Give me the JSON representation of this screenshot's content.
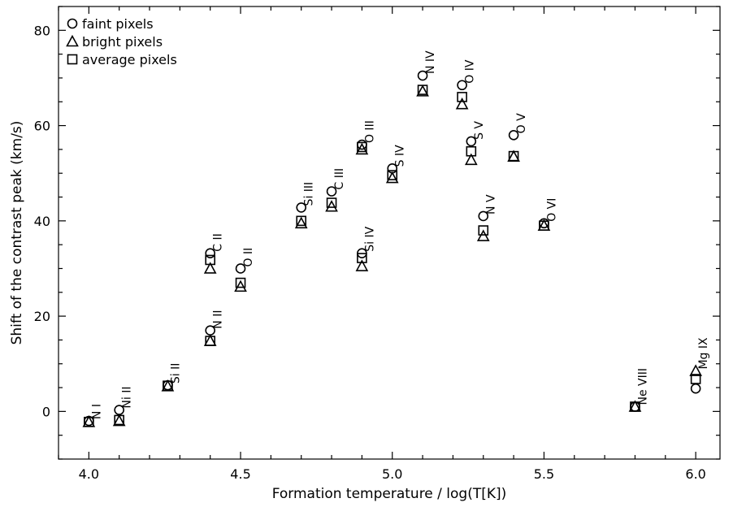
{
  "chart_data": {
    "type": "scatter",
    "xlabel": "Formation temperature / log(T[K])",
    "ylabel": "Shift of the contrast peak (km/s)",
    "xlim": [
      3.9,
      6.08
    ],
    "ylim": [
      -10,
      85
    ],
    "xticks": [
      "4.0",
      "4.5",
      "5.0",
      "5.5",
      "6.0"
    ],
    "xtick_values": [
      4.0,
      4.5,
      5.0,
      5.5,
      6.0
    ],
    "yticks": [
      "0",
      "20",
      "40",
      "60",
      "80"
    ],
    "ytick_values": [
      0,
      20,
      40,
      60,
      80
    ],
    "grid": false,
    "legend_position": "top-left",
    "series": [
      {
        "name": "faint pixels",
        "marker": "circle"
      },
      {
        "name": "bright pixels",
        "marker": "triangle"
      },
      {
        "name": "average pixels",
        "marker": "square"
      }
    ],
    "points": [
      {
        "label": "N I",
        "x": 4.0,
        "faint": -2.0,
        "bright": -2.2,
        "average": -2.2
      },
      {
        "label": "Ni II",
        "x": 4.1,
        "faint": 0.3,
        "bright": -2.0,
        "average": -1.8
      },
      {
        "label": "Si II",
        "x": 4.26,
        "faint": 5.5,
        "bright": 5.3,
        "average": 5.4
      },
      {
        "label": "C II",
        "x": 4.4,
        "faint": 33.2,
        "bright": 30.0,
        "average": 31.8
      },
      {
        "label": "N II",
        "x": 4.4,
        "faint": 17.0,
        "bright": 14.8,
        "average": 14.8
      },
      {
        "label": "O II",
        "x": 4.5,
        "faint": 30.0,
        "bright": 26.2,
        "average": 27.0
      },
      {
        "label": "Si III",
        "x": 4.7,
        "faint": 42.8,
        "bright": 39.5,
        "average": 40.0
      },
      {
        "label": "C III",
        "x": 4.8,
        "faint": 46.2,
        "bright": 43.0,
        "average": 43.8
      },
      {
        "label": "O III",
        "x": 4.9,
        "faint": 56.0,
        "bright": 55.0,
        "average": 55.5
      },
      {
        "label": "Si IV",
        "x": 4.9,
        "faint": 33.2,
        "bright": 30.5,
        "average": 32.2
      },
      {
        "label": "S IV",
        "x": 5.0,
        "faint": 51.0,
        "bright": 49.0,
        "average": 49.6
      },
      {
        "label": "N IV",
        "x": 5.1,
        "faint": 70.5,
        "bright": 67.2,
        "average": 67.5
      },
      {
        "label": "O IV",
        "x": 5.23,
        "faint": 68.5,
        "bright": 64.5,
        "average": 66.0
      },
      {
        "label": "S V",
        "x": 5.26,
        "faint": 56.7,
        "bright": 52.8,
        "average": 54.6
      },
      {
        "label": "N V",
        "x": 5.3,
        "faint": 41.0,
        "bright": 36.8,
        "average": 38.0
      },
      {
        "label": "O V",
        "x": 5.4,
        "faint": 58.0,
        "bright": 53.5,
        "average": 53.6
      },
      {
        "label": "O VI",
        "x": 5.5,
        "faint": 39.5,
        "bright": 39.0,
        "average": 39.0
      },
      {
        "label": "Ne VIII",
        "x": 5.8,
        "faint": 1.0,
        "bright": 1.0,
        "average": 1.0
      },
      {
        "label": "Mg IX",
        "x": 6.0,
        "faint": 4.8,
        "bright": 8.5,
        "average": 6.8
      }
    ]
  }
}
